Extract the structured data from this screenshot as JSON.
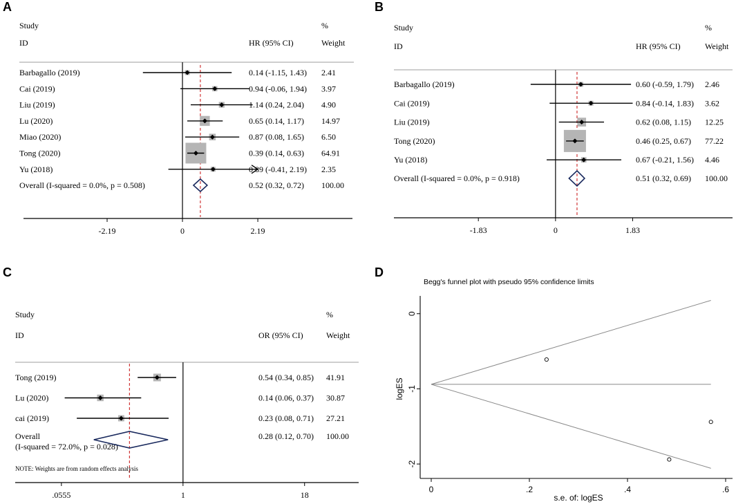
{
  "chart_data": [
    {
      "panel_label": "A",
      "type": "forest",
      "measure": "HR",
      "header": {
        "study": "Study",
        "id": "ID",
        "ci": "HR (95% CI)",
        "pct": "%",
        "weight": "Weight"
      },
      "x_ticks": [
        "-2.19",
        "0",
        "2.19"
      ],
      "x_tick_values": [
        -2.19,
        0,
        2.19
      ],
      "xlim": [
        -4.5,
        4.8
      ],
      "null_line": 0,
      "overall_line": 0.52,
      "studies": [
        {
          "name": "Barbagallo (2019)",
          "est": 0.14,
          "lo": -1.15,
          "hi": 1.43,
          "text": "0.14 (-1.15, 1.43)",
          "weight": "2.41"
        },
        {
          "name": "Cai (2019)",
          "est": 0.94,
          "lo": -0.06,
          "hi": 1.94,
          "text": "0.94 (-0.06, 1.94)",
          "weight": "3.97"
        },
        {
          "name": "Liu (2019)",
          "est": 1.14,
          "lo": 0.24,
          "hi": 2.04,
          "text": "1.14 (0.24, 2.04)",
          "weight": "4.90"
        },
        {
          "name": "Lu (2020)",
          "est": 0.65,
          "lo": 0.14,
          "hi": 1.17,
          "text": "0.65 (0.14, 1.17)",
          "weight": "14.97"
        },
        {
          "name": "Miao (2020)",
          "est": 0.87,
          "lo": 0.08,
          "hi": 1.65,
          "text": "0.87 (0.08, 1.65)",
          "weight": "6.50"
        },
        {
          "name": "Tong (2020)",
          "est": 0.39,
          "lo": 0.14,
          "hi": 0.63,
          "text": "0.39 (0.14, 0.63)",
          "weight": "64.91"
        },
        {
          "name": "Yu (2018)",
          "est": 0.89,
          "lo": -0.41,
          "hi": 2.19,
          "text": "0.89 (-0.41, 2.19)",
          "weight": "2.35",
          "arrow": true
        }
      ],
      "overall": {
        "label": "Overall  (I-squared = 0.0%, p = 0.508)",
        "est": 0.52,
        "lo": 0.32,
        "hi": 0.72,
        "text": "0.52 (0.32, 0.72)",
        "weight": "100.00"
      }
    },
    {
      "panel_label": "B",
      "type": "forest",
      "measure": "HR",
      "header": {
        "study": "Study",
        "id": "ID",
        "ci": "HR (95% CI)",
        "pct": "%",
        "weight": "Weight"
      },
      "x_ticks": [
        "-1.83",
        "0",
        "1.83"
      ],
      "x_tick_values": [
        -1.83,
        0,
        1.83
      ],
      "xlim": [
        -3.8,
        4.1
      ],
      "null_line": 0,
      "overall_line": 0.51,
      "studies": [
        {
          "name": "Barbagallo (2019)",
          "est": 0.6,
          "lo": -0.59,
          "hi": 1.79,
          "text": "0.60 (-0.59, 1.79)",
          "weight": "2.46"
        },
        {
          "name": "Cai (2019)",
          "est": 0.84,
          "lo": -0.14,
          "hi": 1.83,
          "text": "0.84 (-0.14, 1.83)",
          "weight": "3.62"
        },
        {
          "name": "Liu (2019)",
          "est": 0.62,
          "lo": 0.08,
          "hi": 1.15,
          "text": "0.62 (0.08, 1.15)",
          "weight": "12.25"
        },
        {
          "name": "Tong (2020)",
          "est": 0.46,
          "lo": 0.25,
          "hi": 0.67,
          "text": "0.46 (0.25, 0.67)",
          "weight": "77.22"
        },
        {
          "name": "Yu (2018)",
          "est": 0.67,
          "lo": -0.21,
          "hi": 1.56,
          "text": "0.67 (-0.21, 1.56)",
          "weight": "4.46"
        }
      ],
      "overall": {
        "label": "Overall  (I-squared = 0.0%, p = 0.918)",
        "est": 0.51,
        "lo": 0.32,
        "hi": 0.69,
        "text": "0.51 (0.32, 0.69)",
        "weight": "100.00"
      }
    },
    {
      "panel_label": "C",
      "type": "forest",
      "measure": "OR",
      "scale": "log",
      "header": {
        "study": "Study",
        "id": "ID",
        "ci": "OR (95% CI)",
        "pct": "%",
        "weight": "Weight"
      },
      "x_ticks": [
        ".0555",
        "1",
        "18"
      ],
      "x_tick_values": [
        0.0555,
        1,
        18
      ],
      "xlim": [
        0.0185,
        60
      ],
      "null_line": 1,
      "overall_line": 0.28,
      "studies": [
        {
          "name": "Tong  (2019)",
          "est": 0.54,
          "lo": 0.34,
          "hi": 0.85,
          "text": "0.54 (0.34, 0.85)",
          "weight": "41.91"
        },
        {
          "name": "Lu  (2020)",
          "est": 0.14,
          "lo": 0.06,
          "hi": 0.37,
          "text": "0.14 (0.06, 0.37)",
          "weight": "30.87"
        },
        {
          "name": "cai  (2019)",
          "est": 0.23,
          "lo": 0.08,
          "hi": 0.71,
          "text": "0.23 (0.08, 0.71)",
          "weight": "27.21"
        }
      ],
      "overall": {
        "label": "Overall",
        "label2": "(I-squared = 72.0%, p = 0.028)",
        "est": 0.28,
        "lo": 0.12,
        "hi": 0.7,
        "text": "0.28 (0.12, 0.70)",
        "weight": "100.00"
      },
      "note": "NOTE: Weights are from random effects analysis"
    },
    {
      "panel_label": "D",
      "type": "scatter",
      "title": "Begg's funnel plot with pseudo 95% confidence limits",
      "xlabel": "s.e. of: logES",
      "ylabel": "logES",
      "x_ticks": [
        "0",
        ".2",
        ".4",
        ".6"
      ],
      "x_tick_values": [
        0,
        0.2,
        0.4,
        0.6
      ],
      "y_ticks": [
        "0",
        "-1",
        "-2"
      ],
      "y_tick_values": [
        0,
        -1,
        -2
      ],
      "xlim": [
        0,
        0.6
      ],
      "ylim": [
        -2.1,
        0.2
      ],
      "pooled": -0.94,
      "funnel_se_max": 0.57,
      "points": [
        {
          "x": 0.235,
          "y": -0.61
        },
        {
          "x": 0.485,
          "y": -1.94
        },
        {
          "x": 0.57,
          "y": -1.44
        }
      ]
    }
  ]
}
